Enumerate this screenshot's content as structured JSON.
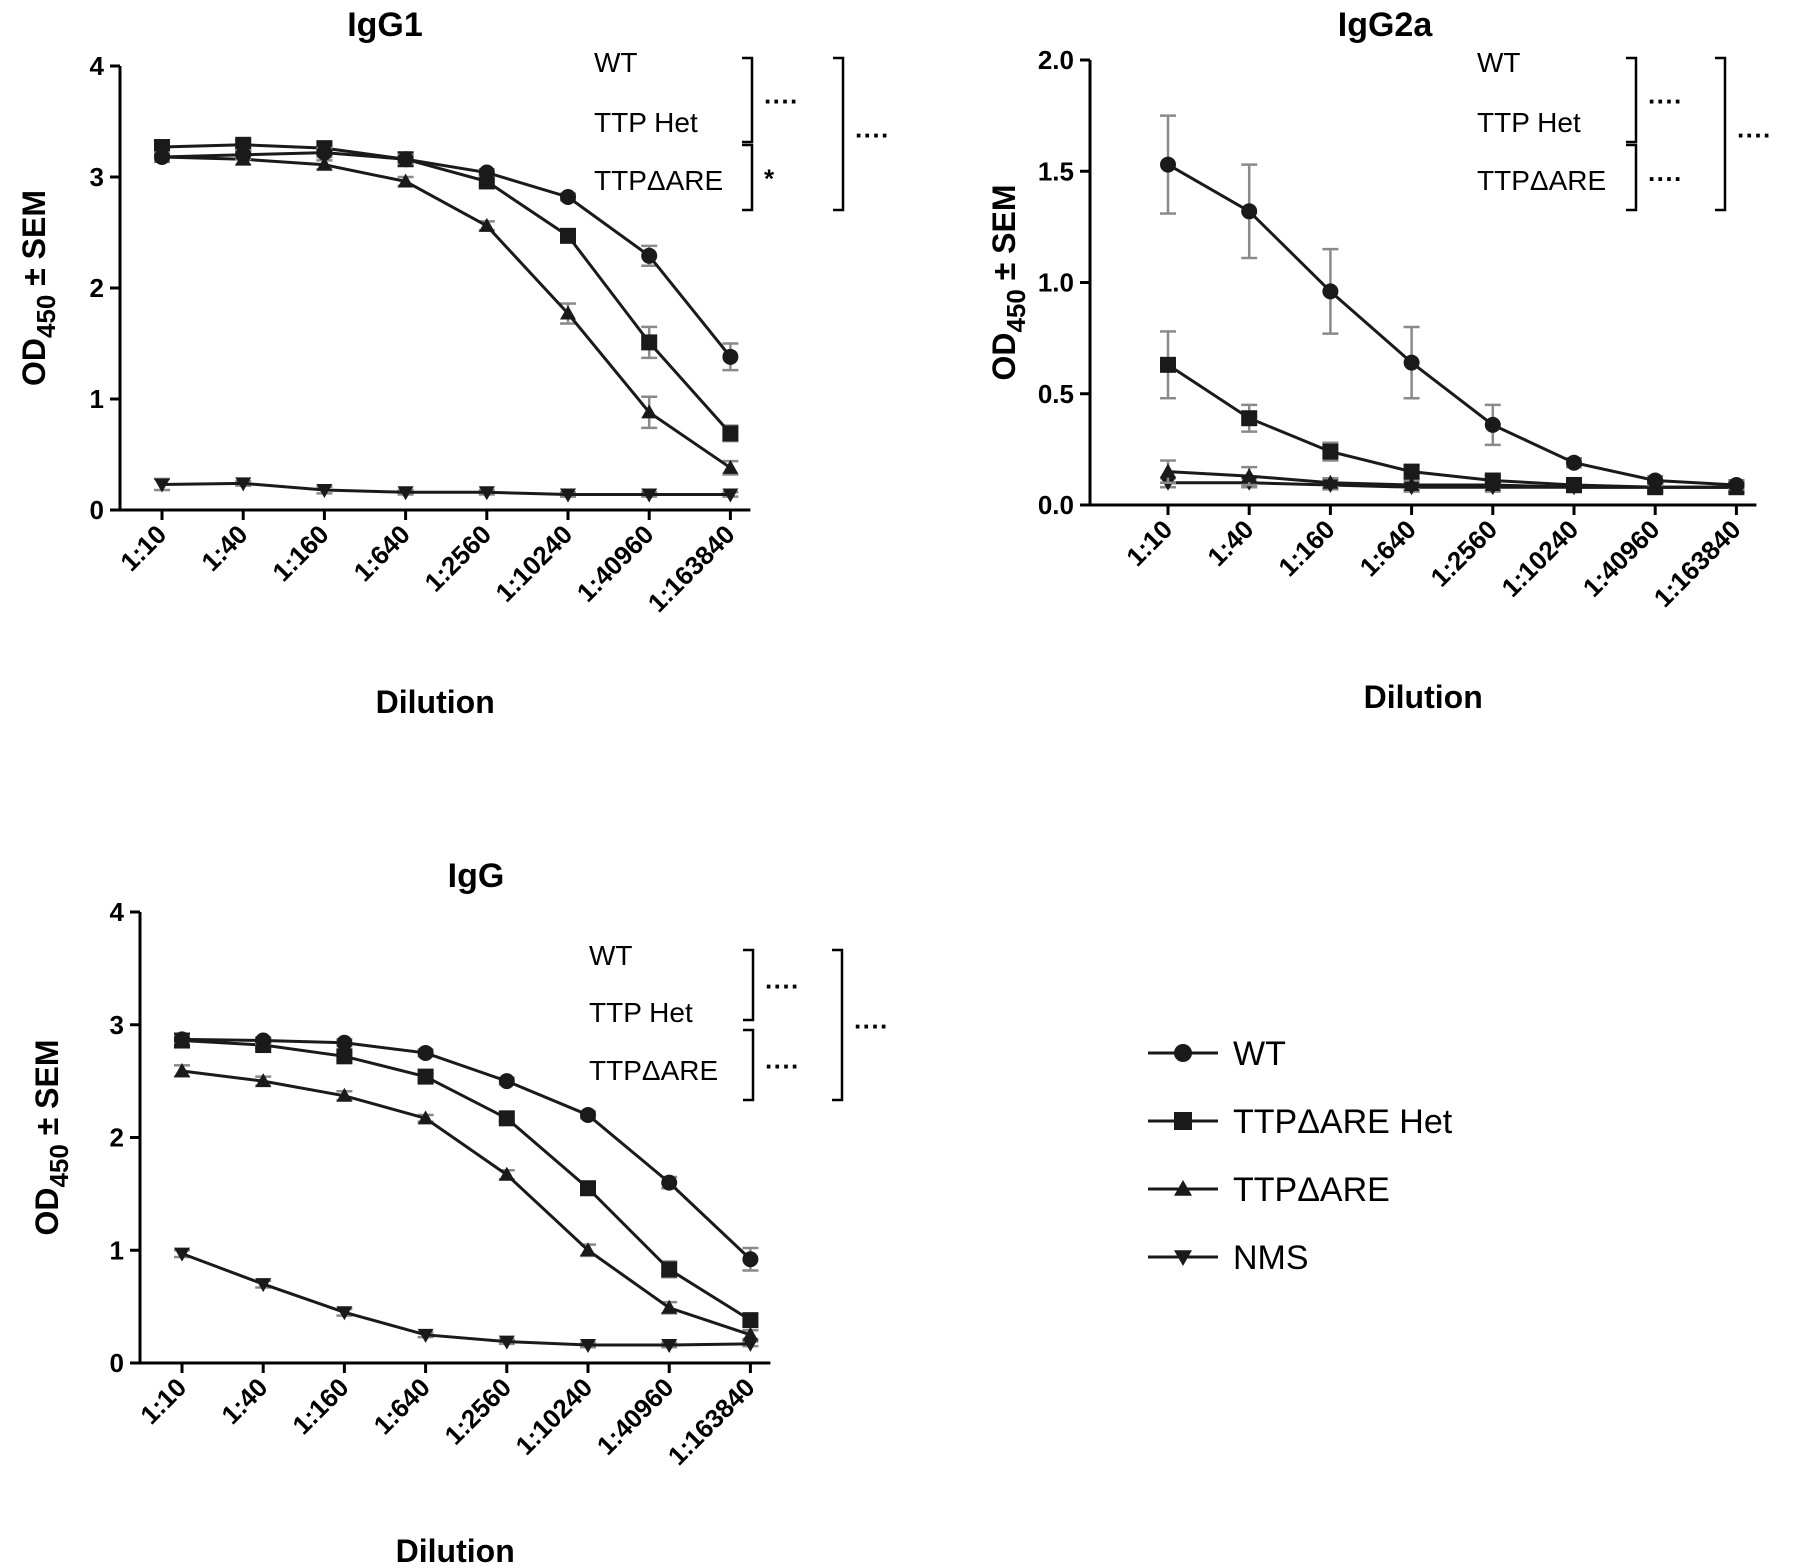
{
  "chart_data": [
    {
      "type": "line",
      "title": "IgG1",
      "xlabel": "Dilution",
      "ylabel_main": "OD",
      "ylabel_sub": "450",
      "ylabel_tail": " ± SEM",
      "ylim": [
        0,
        4
      ],
      "yticks": [
        "0",
        "1",
        "2",
        "3",
        "4"
      ],
      "categories": [
        "1:10",
        "1:40",
        "1:160",
        "1:640",
        "1:2560",
        "1:10240",
        "1:40960",
        "1:163840"
      ],
      "series": [
        {
          "name": "WT",
          "marker": "circle",
          "values": [
            3.18,
            3.2,
            3.22,
            3.16,
            3.04,
            2.82,
            2.29,
            1.38
          ],
          "errors": [
            0.04,
            0.04,
            0.04,
            0.04,
            0.03,
            0.03,
            0.09,
            0.12
          ]
        },
        {
          "name": "TTPΔARE Het",
          "marker": "square",
          "values": [
            3.27,
            3.29,
            3.26,
            3.16,
            2.96,
            2.47,
            1.51,
            0.69
          ],
          "errors": [
            0.04,
            0.04,
            0.04,
            0.04,
            0.04,
            0.04,
            0.14,
            0.07
          ]
        },
        {
          "name": "TTPΔARE",
          "marker": "triangle-up",
          "values": [
            3.18,
            3.16,
            3.11,
            2.96,
            2.56,
            1.77,
            0.88,
            0.38
          ],
          "errors": [
            0.03,
            0.05,
            0.04,
            0.04,
            0.04,
            0.09,
            0.14,
            0.06
          ]
        },
        {
          "name": "NMS",
          "marker": "triangle-down",
          "values": [
            0.23,
            0.24,
            0.18,
            0.16,
            0.16,
            0.14,
            0.14,
            0.14
          ],
          "errors": [
            0.05,
            0.02,
            0.03,
            0.02,
            0.02,
            0.02,
            0.02,
            0.02
          ]
        }
      ],
      "annotation": {
        "labels": [
          "WT",
          "TTP Het",
          "TTPΔARE"
        ],
        "sig_top": "····",
        "sig_bottom": "*",
        "sig_outer": "····"
      }
    },
    {
      "type": "line",
      "title": "IgG2a",
      "xlabel": "Dilution",
      "ylabel_main": "OD",
      "ylabel_sub": "450",
      "ylabel_tail": " ± SEM",
      "ylim": [
        0,
        2
      ],
      "yticks": [
        "0.0",
        "0.5",
        "1.0",
        "1.5",
        "2.0"
      ],
      "categories": [
        "1:10",
        "1:40",
        "1:160",
        "1:640",
        "1:2560",
        "1:10240",
        "1:40960",
        "1:163840"
      ],
      "series": [
        {
          "name": "WT",
          "marker": "circle",
          "values": [
            1.53,
            1.32,
            0.96,
            0.64,
            0.36,
            0.19,
            0.11,
            0.09
          ],
          "errors": [
            0.22,
            0.21,
            0.19,
            0.16,
            0.09,
            0.02,
            0.02,
            0.02
          ]
        },
        {
          "name": "TTPΔARE Het",
          "marker": "square",
          "values": [
            0.63,
            0.39,
            0.24,
            0.15,
            0.11,
            0.09,
            0.08,
            0.08
          ],
          "errors": [
            0.15,
            0.06,
            0.04,
            0.03,
            0.02,
            0.02,
            0.02,
            0.02
          ]
        },
        {
          "name": "TTPΔARE",
          "marker": "triangle-up",
          "values": [
            0.15,
            0.13,
            0.1,
            0.09,
            0.09,
            0.08,
            0.08,
            0.08
          ],
          "errors": [
            0.05,
            0.04,
            0.02,
            0.02,
            0.02,
            0.02,
            0.02,
            0.02
          ]
        },
        {
          "name": "NMS",
          "marker": "triangle-down",
          "values": [
            0.1,
            0.1,
            0.09,
            0.08,
            0.08,
            0.08,
            0.08,
            0.08
          ],
          "errors": [
            0.02,
            0.02,
            0.02,
            0.02,
            0.02,
            0.02,
            0.02,
            0.02
          ]
        }
      ],
      "annotation": {
        "labels": [
          "WT",
          "TTP Het",
          "TTPΔARE"
        ],
        "sig_top": "····",
        "sig_bottom": "····",
        "sig_outer": "····"
      }
    },
    {
      "type": "line",
      "title": "IgG",
      "xlabel": "Dilution",
      "ylabel_main": "OD",
      "ylabel_sub": "450",
      "ylabel_tail": " ± SEM",
      "ylim": [
        0,
        4
      ],
      "yticks": [
        "0",
        "1",
        "2",
        "3",
        "4"
      ],
      "categories": [
        "1:10",
        "1:40",
        "1:160",
        "1:640",
        "1:2560",
        "1:10240",
        "1:40960",
        "1:163840"
      ],
      "series": [
        {
          "name": "WT",
          "marker": "circle",
          "values": [
            2.87,
            2.86,
            2.84,
            2.75,
            2.5,
            2.2,
            1.6,
            0.92
          ],
          "errors": [
            0.03,
            0.03,
            0.03,
            0.03,
            0.03,
            0.03,
            0.05,
            0.1
          ]
        },
        {
          "name": "TTPΔARE Het",
          "marker": "square",
          "values": [
            2.86,
            2.82,
            2.72,
            2.54,
            2.17,
            1.55,
            0.83,
            0.38
          ],
          "errors": [
            0.03,
            0.03,
            0.03,
            0.03,
            0.03,
            0.05,
            0.07,
            0.05
          ]
        },
        {
          "name": "TTPΔARE",
          "marker": "triangle-up",
          "values": [
            2.59,
            2.5,
            2.37,
            2.17,
            1.67,
            1.0,
            0.49,
            0.25
          ],
          "errors": [
            0.05,
            0.04,
            0.04,
            0.03,
            0.04,
            0.05,
            0.05,
            0.04
          ]
        },
        {
          "name": "NMS",
          "marker": "triangle-down",
          "values": [
            0.97,
            0.7,
            0.45,
            0.25,
            0.19,
            0.16,
            0.16,
            0.17
          ],
          "errors": [
            0.03,
            0.03,
            0.03,
            0.02,
            0.02,
            0.02,
            0.02,
            0.02
          ]
        }
      ],
      "annotation": {
        "labels": [
          "WT",
          "TTP Het",
          "TTPΔARE"
        ],
        "sig_top": "····",
        "sig_bottom": "····",
        "sig_outer": "····"
      }
    }
  ],
  "legend": {
    "items": [
      {
        "label": "WT",
        "marker": "circle"
      },
      {
        "label": "TTPΔARE Het",
        "marker": "square"
      },
      {
        "label": "TTPΔARE",
        "marker": "triangle-up"
      },
      {
        "label": "NMS",
        "marker": "triangle-down"
      }
    ]
  },
  "colors": {
    "line": "#1a1a1a",
    "error_bar": "#8a8a8a",
    "text": "#000000"
  }
}
